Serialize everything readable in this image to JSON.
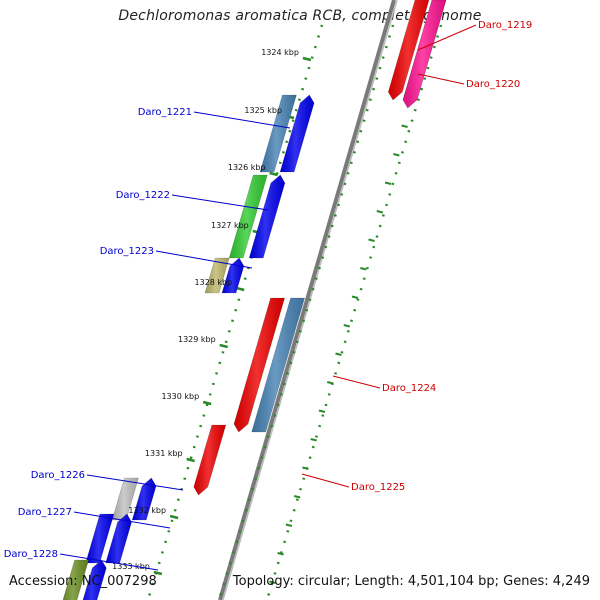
{
  "title": "Dechloromonas aromatica RCB, complete genome",
  "footer": {
    "accession": "Accession: NC_007298",
    "topology": "Topology: circular; Length: 4,501,104 bp; Genes: 4,249"
  },
  "colors": {
    "forward_label": "#0000cc",
    "reverse_label": "#cc0000",
    "backbone": "#888888",
    "ticks": "#2a8a2a"
  },
  "kbp_ticks": [
    "1324 kbp",
    "1325 kbp",
    "1326 kbp",
    "1327 kbp",
    "1328 kbp",
    "1329 kbp",
    "1330 kbp",
    "1331 kbp",
    "1332 kbp",
    "1333 kbp"
  ],
  "genes": [
    {
      "name": "Daro_1219",
      "strand": "reverse",
      "colors": [
        "#ee0000",
        "#ff1493"
      ]
    },
    {
      "name": "Daro_1220",
      "strand": "reverse",
      "colors": [
        "#ff1493"
      ]
    },
    {
      "name": "Daro_1221",
      "strand": "forward",
      "colors": [
        "#4682b4",
        "#0000ee"
      ]
    },
    {
      "name": "Daro_1222",
      "strand": "forward",
      "colors": [
        "#33cc33",
        "#0000ee"
      ]
    },
    {
      "name": "Daro_1223",
      "strand": "forward",
      "colors": [
        "#bdb76b",
        "#0000ee"
      ]
    },
    {
      "name": "Daro_1224",
      "strand": "reverse",
      "colors": [
        "#ee0000",
        "#4682b4"
      ]
    },
    {
      "name": "Daro_1225",
      "strand": "reverse",
      "colors": [
        "#ee0000"
      ]
    },
    {
      "name": "Daro_1226",
      "strand": "forward",
      "colors": [
        "#c0c0c0",
        "#0000ee"
      ]
    },
    {
      "name": "Daro_1227",
      "strand": "forward",
      "colors": [
        "#0000ee",
        "#0000ee"
      ]
    },
    {
      "name": "Daro_1228",
      "strand": "forward",
      "colors": [
        "#6b8e23",
        "#0000ee"
      ]
    }
  ]
}
